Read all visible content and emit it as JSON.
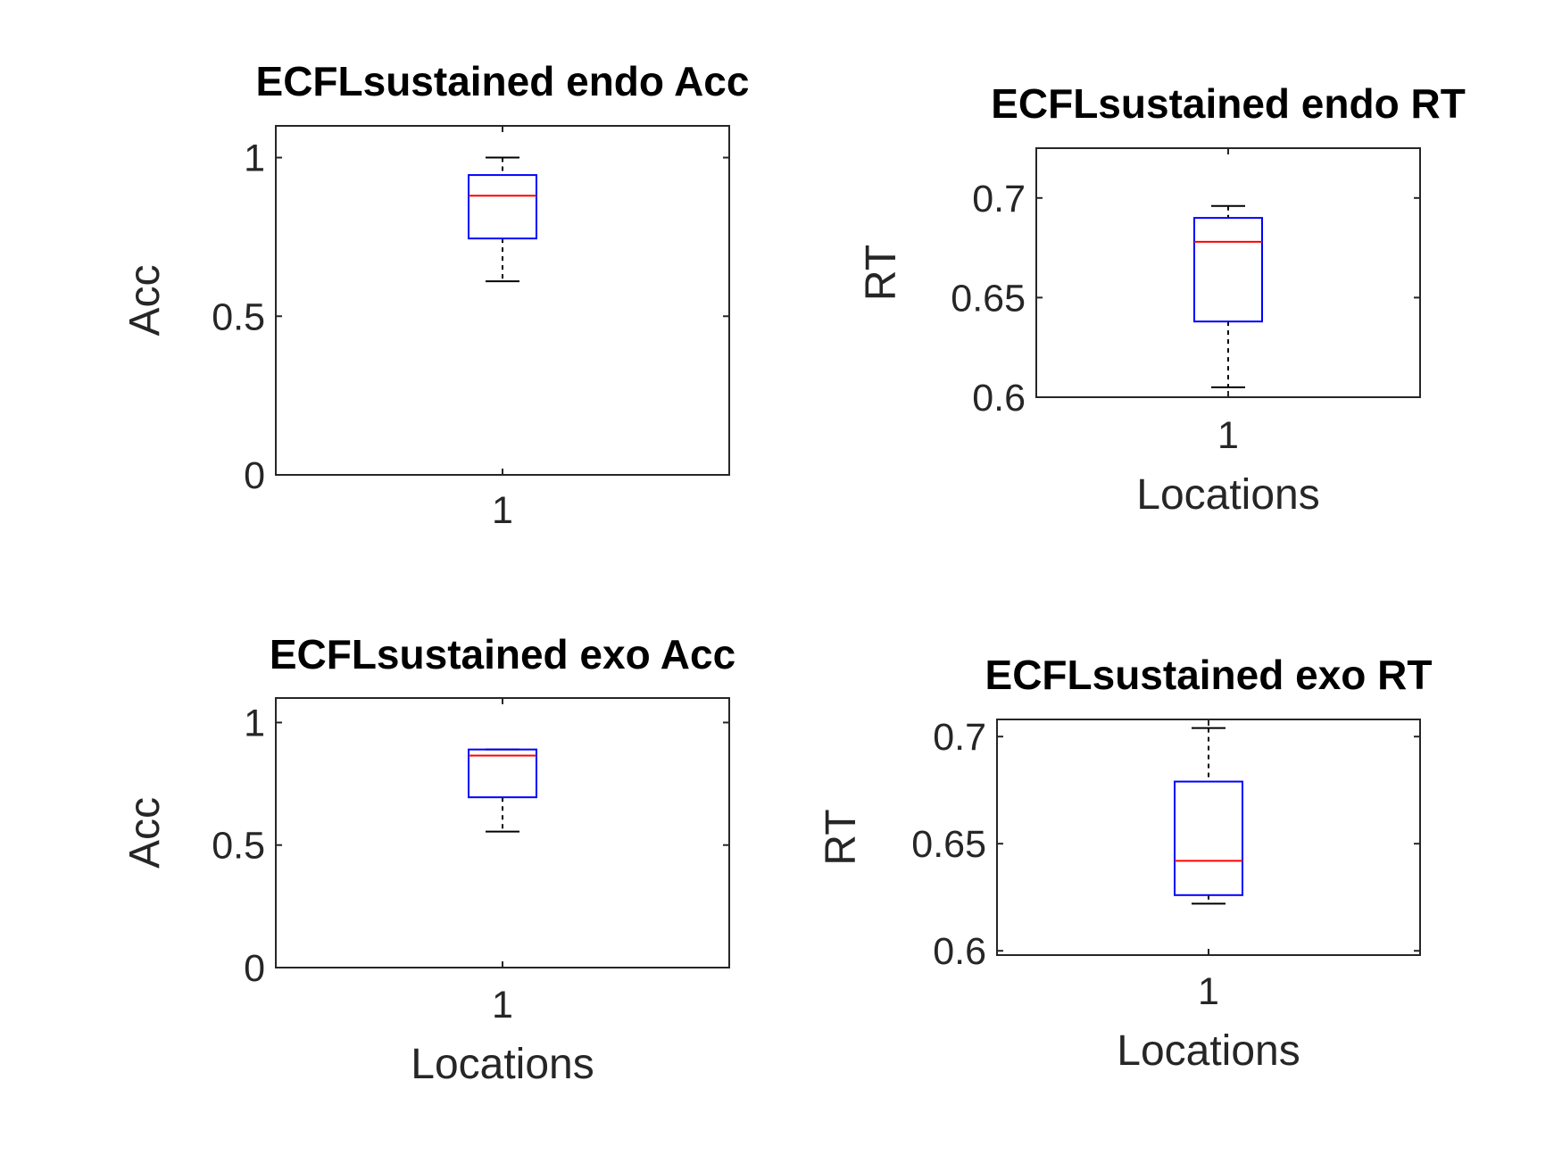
{
  "chart_data": [
    {
      "type": "box",
      "title": "ECFLsustained endo Acc",
      "xlabel": "",
      "ylabel": "Acc",
      "categories": [
        "1"
      ],
      "ylim": [
        0,
        1.1
      ],
      "yticks": [
        {
          "value": 0,
          "label": "0"
        },
        {
          "value": 0.5,
          "label": "0.5"
        },
        {
          "value": 1,
          "label": "1"
        }
      ],
      "boxes": [
        {
          "category": "1",
          "whisker_low": 0.61,
          "q1": 0.745,
          "median": 0.88,
          "q3": 0.945,
          "whisker_high": 1.0
        }
      ],
      "colors": {
        "box": "#0000ff",
        "median": "#ff0000",
        "whisker": "#000000"
      }
    },
    {
      "type": "box",
      "title": "ECFLsustained endo RT",
      "xlabel": "Locations",
      "ylabel": "RT",
      "categories": [
        "1"
      ],
      "ylim": [
        0.6,
        0.725
      ],
      "yticks": [
        {
          "value": 0.6,
          "label": "0.6"
        },
        {
          "value": 0.65,
          "label": "0.65"
        },
        {
          "value": 0.7,
          "label": "0.7"
        }
      ],
      "boxes": [
        {
          "category": "1",
          "whisker_low": 0.605,
          "q1": 0.638,
          "median": 0.678,
          "q3": 0.69,
          "whisker_high": 0.696
        }
      ],
      "colors": {
        "box": "#0000ff",
        "median": "#ff0000",
        "whisker": "#000000"
      }
    },
    {
      "type": "box",
      "title": "ECFLsustained exo Acc",
      "xlabel": "Locations",
      "ylabel": "Acc",
      "categories": [
        "1"
      ],
      "ylim": [
        0,
        1.1
      ],
      "yticks": [
        {
          "value": 0,
          "label": "0"
        },
        {
          "value": 0.5,
          "label": "0.5"
        },
        {
          "value": 1,
          "label": "1"
        }
      ],
      "boxes": [
        {
          "category": "1",
          "whisker_low": 0.555,
          "q1": 0.695,
          "median": 0.865,
          "q3": 0.89,
          "whisker_high": 0.89
        }
      ],
      "colors": {
        "box": "#0000ff",
        "median": "#ff0000",
        "whisker": "#000000"
      }
    },
    {
      "type": "box",
      "title": "ECFLsustained exo RT",
      "xlabel": "Locations",
      "ylabel": "RT",
      "categories": [
        "1"
      ],
      "ylim": [
        0.598,
        0.708
      ],
      "yticks": [
        {
          "value": 0.6,
          "label": "0.6"
        },
        {
          "value": 0.65,
          "label": "0.65"
        },
        {
          "value": 0.7,
          "label": "0.7"
        }
      ],
      "boxes": [
        {
          "category": "1",
          "whisker_low": 0.622,
          "q1": 0.626,
          "median": 0.642,
          "q3": 0.679,
          "whisker_high": 0.704
        }
      ],
      "colors": {
        "box": "#0000ff",
        "median": "#ff0000",
        "whisker": "#000000"
      }
    }
  ]
}
